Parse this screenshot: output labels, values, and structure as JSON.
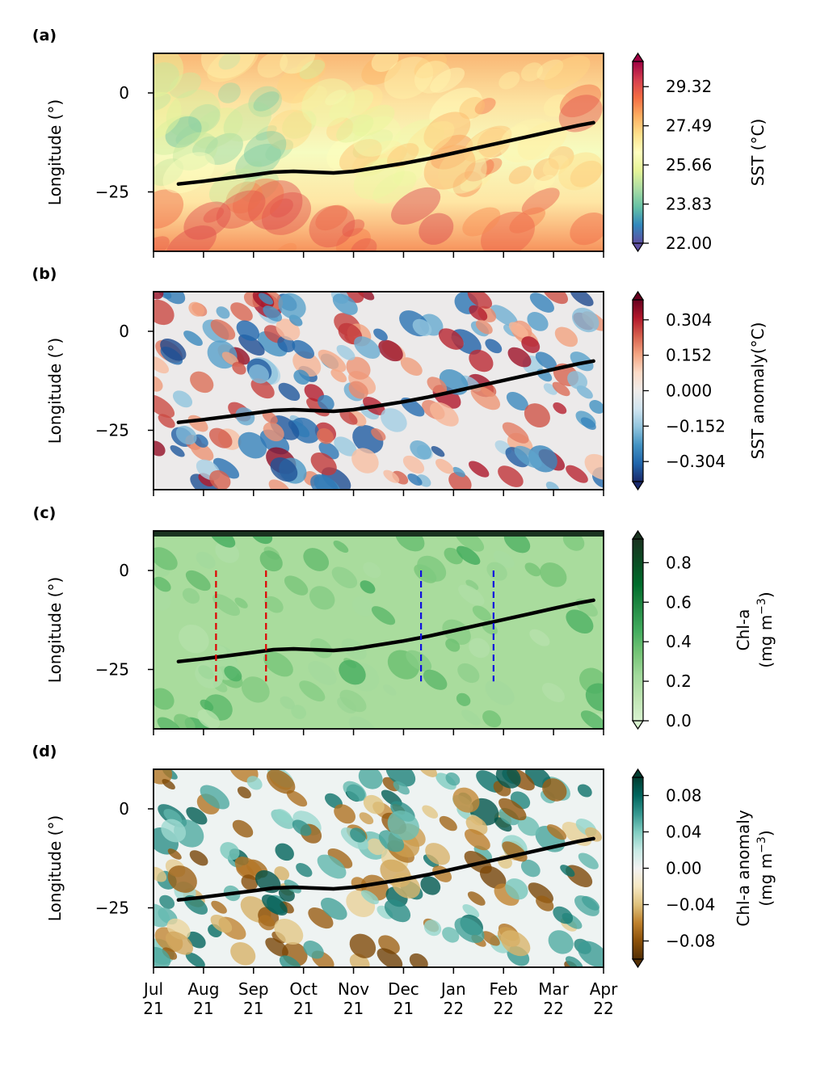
{
  "chart_data": [
    {
      "panel_label": "(a)",
      "type": "heatmap",
      "ylabel": "Longitude (°)",
      "colorbar_label": "SST (°C)",
      "colorbar_ticks": [
        "29.32",
        "27.49",
        "25.66",
        "23.83",
        "22.00"
      ],
      "colorbar_range": [
        22.0,
        30.5
      ],
      "colormap": [
        "#5e4fa2",
        "#3288bd",
        "#66c2a5",
        "#abdda4",
        "#e6f598",
        "#ffffbf",
        "#fee08b",
        "#fdae61",
        "#f46d43",
        "#d53e4f",
        "#9e0142"
      ],
      "background_colors": [
        "#f9b775",
        "#fde3a1",
        "#f6fcc0",
        "#fee6a4",
        "#f7935d"
      ],
      "ylim": [
        -40,
        10
      ],
      "yticks": [
        "0",
        "−25"
      ],
      "trajectory": {
        "x": [
          0.5,
          1,
          1.5,
          2,
          2.4,
          2.8,
          3.2,
          3.6,
          4,
          4.5,
          5,
          5.5,
          6,
          6.5,
          7,
          7.5,
          8,
          8.5,
          8.8
        ],
        "y": [
          -23,
          -22.3,
          -21.5,
          -20.7,
          -20,
          -19.8,
          -20,
          -20.2,
          -19.8,
          -18.8,
          -17.8,
          -16.6,
          -15.2,
          -13.8,
          -12.4,
          -11,
          -9.6,
          -8.2,
          -7.5
        ]
      }
    },
    {
      "panel_label": "(b)",
      "type": "heatmap",
      "ylabel": "Longitude (°)",
      "colorbar_label": "SST anomaly(°C)",
      "colorbar_ticks": [
        "0.304",
        "0.152",
        "0.000",
        "−0.152",
        "−0.304"
      ],
      "colorbar_range": [
        -0.39,
        0.39
      ],
      "colormap": [
        "#1a2a6c",
        "#2166ac",
        "#4393c3",
        "#92c5de",
        "#d1e5f0",
        "#f0ecea",
        "#fddbc7",
        "#f4a582",
        "#d6604d",
        "#b2182b",
        "#67001f"
      ],
      "background_colors": [
        "#eceaea"
      ],
      "ylim": [
        -40,
        10
      ],
      "yticks": [
        "0",
        "−25"
      ],
      "trajectory": {
        "x": [
          0.5,
          1,
          1.5,
          2,
          2.4,
          2.8,
          3.2,
          3.6,
          4,
          4.5,
          5,
          5.5,
          6,
          6.5,
          7,
          7.5,
          8,
          8.5,
          8.8
        ],
        "y": [
          -23,
          -22.3,
          -21.5,
          -20.7,
          -20,
          -19.8,
          -20,
          -20.2,
          -19.8,
          -18.8,
          -17.8,
          -16.6,
          -15.2,
          -13.8,
          -12.4,
          -11,
          -9.6,
          -8.2,
          -7.5
        ]
      }
    },
    {
      "panel_label": "(c)",
      "type": "heatmap",
      "ylabel": "Longitude (°)",
      "colorbar_label": [
        "Chl-a",
        "(mg m",
        "−3",
        ")"
      ],
      "colorbar_ticks": [
        "0.8",
        "0.6",
        "0.4",
        "0.2",
        "0.0"
      ],
      "colorbar_range": [
        0.0,
        0.92
      ],
      "colormap": [
        "#d8f2cf",
        "#bfe5b3",
        "#a1d99b",
        "#74c476",
        "#41ab5d",
        "#238b45",
        "#006d2c",
        "#0b4d24",
        "#1a3320"
      ],
      "background_colors": [
        "#a9dc9d"
      ],
      "ylim": [
        -40,
        10
      ],
      "yticks": [
        "0",
        "−25"
      ],
      "trajectory": {
        "x": [
          0.5,
          1,
          1.5,
          2,
          2.4,
          2.8,
          3.2,
          3.6,
          4,
          4.5,
          5,
          5.5,
          6,
          6.5,
          7,
          7.5,
          8,
          8.5,
          8.8
        ],
        "y": [
          -23,
          -22.3,
          -21.5,
          -20.7,
          -20,
          -19.8,
          -20,
          -20.2,
          -19.8,
          -18.8,
          -17.8,
          -16.6,
          -15.2,
          -13.8,
          -12.4,
          -11,
          -9.6,
          -8.2,
          -7.5
        ]
      },
      "vlines": [
        {
          "x": 1.25,
          "y": [
            -28,
            0
          ],
          "color": "#e00000"
        },
        {
          "x": 2.25,
          "y": [
            -28,
            0
          ],
          "color": "#e00000"
        },
        {
          "x": 5.35,
          "y": [
            -28,
            0
          ],
          "color": "#1010e0"
        },
        {
          "x": 6.8,
          "y": [
            -28,
            0
          ],
          "color": "#1010e0"
        }
      ]
    },
    {
      "panel_label": "(d)",
      "type": "heatmap",
      "ylabel": "Longitude (°)",
      "colorbar_label": [
        "Chl-a anomaly",
        "(mg m",
        "−3",
        ")"
      ],
      "colorbar_ticks": [
        "0.08",
        "0.04",
        "0.00",
        "−0.04",
        "−0.08"
      ],
      "colorbar_range": [
        -0.1,
        0.1
      ],
      "colormap": [
        "#543005",
        "#8c510a",
        "#bf812d",
        "#dfc27d",
        "#f6e8c3",
        "#f2f2f2",
        "#c7eae5",
        "#80cdc1",
        "#35978f",
        "#01665e",
        "#003c30"
      ],
      "background_colors": [
        "#eef3f2"
      ],
      "ylim": [
        -40,
        10
      ],
      "yticks": [
        "0",
        "−25"
      ],
      "trajectory": {
        "x": [
          0.5,
          1,
          1.5,
          2,
          2.4,
          2.8,
          3.2,
          3.6,
          4,
          4.5,
          5,
          5.5,
          6,
          6.5,
          7,
          7.5,
          8,
          8.5,
          8.8
        ],
        "y": [
          -23,
          -22.3,
          -21.5,
          -20.7,
          -20,
          -19.8,
          -20,
          -20.2,
          -19.8,
          -18.8,
          -17.8,
          -16.6,
          -15.2,
          -13.8,
          -12.4,
          -11,
          -9.6,
          -8.2,
          -7.5
        ]
      },
      "xticks": [
        {
          "month": "Jul",
          "year": "21"
        },
        {
          "month": "Aug",
          "year": "21"
        },
        {
          "month": "Sep",
          "year": "21"
        },
        {
          "month": "Oct",
          "year": "21"
        },
        {
          "month": "Nov",
          "year": "21"
        },
        {
          "month": "Dec",
          "year": "21"
        },
        {
          "month": "Jan",
          "year": "22"
        },
        {
          "month": "Feb",
          "year": "22"
        },
        {
          "month": "Mar",
          "year": "22"
        },
        {
          "month": "Apr",
          "year": "22"
        }
      ]
    }
  ]
}
